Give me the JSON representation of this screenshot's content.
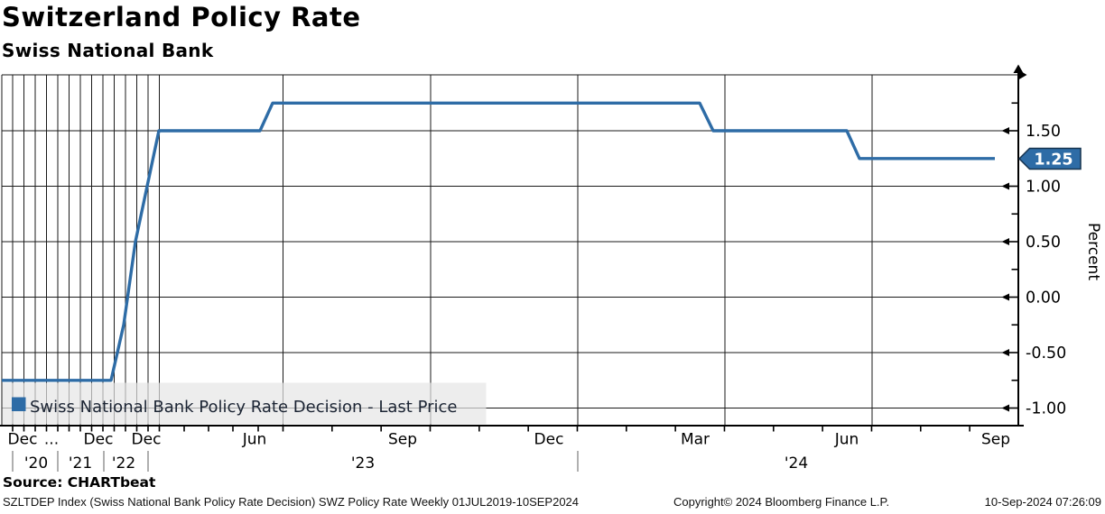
{
  "header": {
    "title": "Switzerland Policy Rate",
    "subtitle": "Swiss National Bank"
  },
  "chart_data": {
    "type": "line",
    "title": "Switzerland Policy Rate",
    "subtitle": "Swiss National Bank",
    "ylabel": "Percent",
    "ylim": [
      -1.15,
      2.0
    ],
    "grid": "on",
    "legend_position": "bottom-left",
    "series": [
      {
        "name": "Swiss National Bank Policy Rate Decision - Last Price",
        "color": "#2e6ca6",
        "points": [
          {
            "date": "Jul 2019",
            "value": -0.75
          },
          {
            "date": "Jun 2022",
            "value": -0.25
          },
          {
            "date": "Sep 2022",
            "value": 0.5
          },
          {
            "date": "Dec 2022",
            "value": 1.0
          },
          {
            "date": "Mar 2023",
            "value": 1.5
          },
          {
            "date": "Jun 2023",
            "value": 1.75
          },
          {
            "date": "Mar 2024",
            "value": 1.5
          },
          {
            "date": "Jun 2024",
            "value": 1.25
          },
          {
            "date": "Sep 2024",
            "value": 1.25
          }
        ]
      }
    ],
    "last_value_label": "1.25",
    "y_ticks": [
      {
        "value": 1.5,
        "label": "1.50"
      },
      {
        "value": 1.0,
        "label": "1.00"
      },
      {
        "value": 0.5,
        "label": "0.50"
      },
      {
        "value": 0.0,
        "label": "0.00"
      },
      {
        "value": -0.5,
        "label": "-0.50"
      },
      {
        "value": -1.0,
        "label": "-1.00"
      }
    ],
    "y_minor_ticks": [
      1.75,
      0.75,
      0.25,
      -0.25,
      -0.75
    ],
    "x_month_labels": [
      "Dec",
      "Dec",
      "Dec",
      "Jun",
      "Sep",
      "Dec",
      "Mar",
      "Jun",
      "Sep"
    ],
    "x_ellipsis": "...",
    "x_year_labels": [
      "'20",
      "'21",
      "'22",
      "'23",
      "'24"
    ]
  },
  "legend": {
    "label": "Swiss National Bank Policy Rate Decision - Last Price"
  },
  "source": {
    "label": "Source: CHARTbeat"
  },
  "footer": {
    "left": "SZLTDEP Index (Swiss National Bank Policy Rate Decision) SWZ Policy Rate  Weekly 01JUL2019-10SEP2024",
    "copyright": "Copyright© 2024 Bloomberg Finance L.P.",
    "timestamp": "10-Sep-2024 07:26:09"
  }
}
